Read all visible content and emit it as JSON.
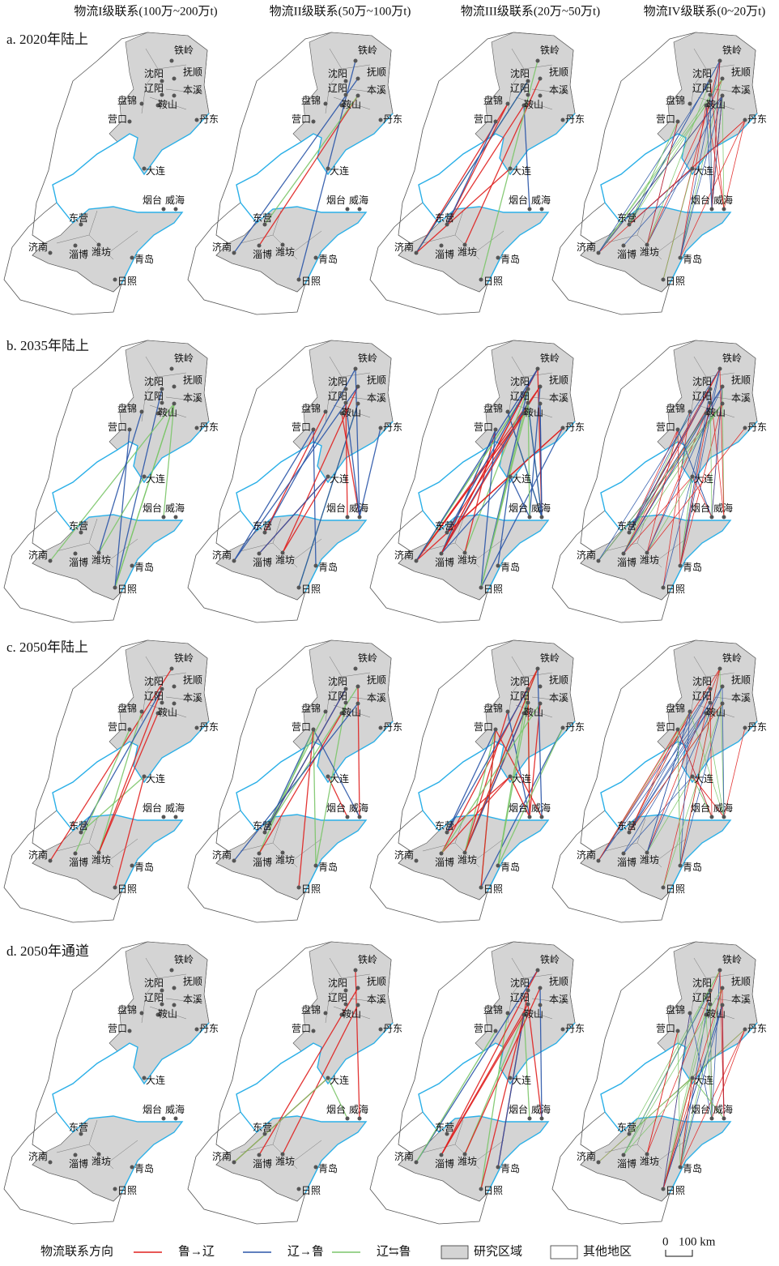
{
  "column_headers": [
    "物流I级联系(100万~200万t)",
    "物流II级联系(50万~100万t)",
    "物流III级联系(20万~50万t)",
    "物流IV级联系(0~20万t)"
  ],
  "rows": [
    {
      "title": "a. 2020年陆上"
    },
    {
      "title": "b. 2035年陆上"
    },
    {
      "title": "c. 2050年陆上"
    },
    {
      "title": "d. 2050年通道"
    }
  ],
  "cities": [
    {
      "name": "铁岭"
    },
    {
      "name": "沈阳"
    },
    {
      "name": "抚顺"
    },
    {
      "name": "辽阳"
    },
    {
      "name": "本溪"
    },
    {
      "name": "盘锦"
    },
    {
      "name": "鞍山"
    },
    {
      "name": "营口"
    },
    {
      "name": "丹东"
    },
    {
      "name": "大连"
    },
    {
      "name": "烟台"
    },
    {
      "name": "威海"
    },
    {
      "name": "东营"
    },
    {
      "name": "济南"
    },
    {
      "name": "淄博"
    },
    {
      "name": "潍坊"
    },
    {
      "name": "青岛"
    },
    {
      "name": "日照"
    }
  ],
  "legend": {
    "title": "物流联系方向",
    "items": [
      {
        "label": "鲁→辽",
        "color": "#e0201f"
      },
      {
        "label": "辽→鲁",
        "color": "#2a55a8"
      },
      {
        "label": "辽⇆鲁",
        "color": "#7cc66a"
      },
      {
        "label": "研究区域",
        "color": "#d4d4d4"
      },
      {
        "label": "其他地区",
        "color": "#ffffff"
      }
    ]
  },
  "scale_bar": {
    "zero": "0",
    "label": "100 km"
  }
}
